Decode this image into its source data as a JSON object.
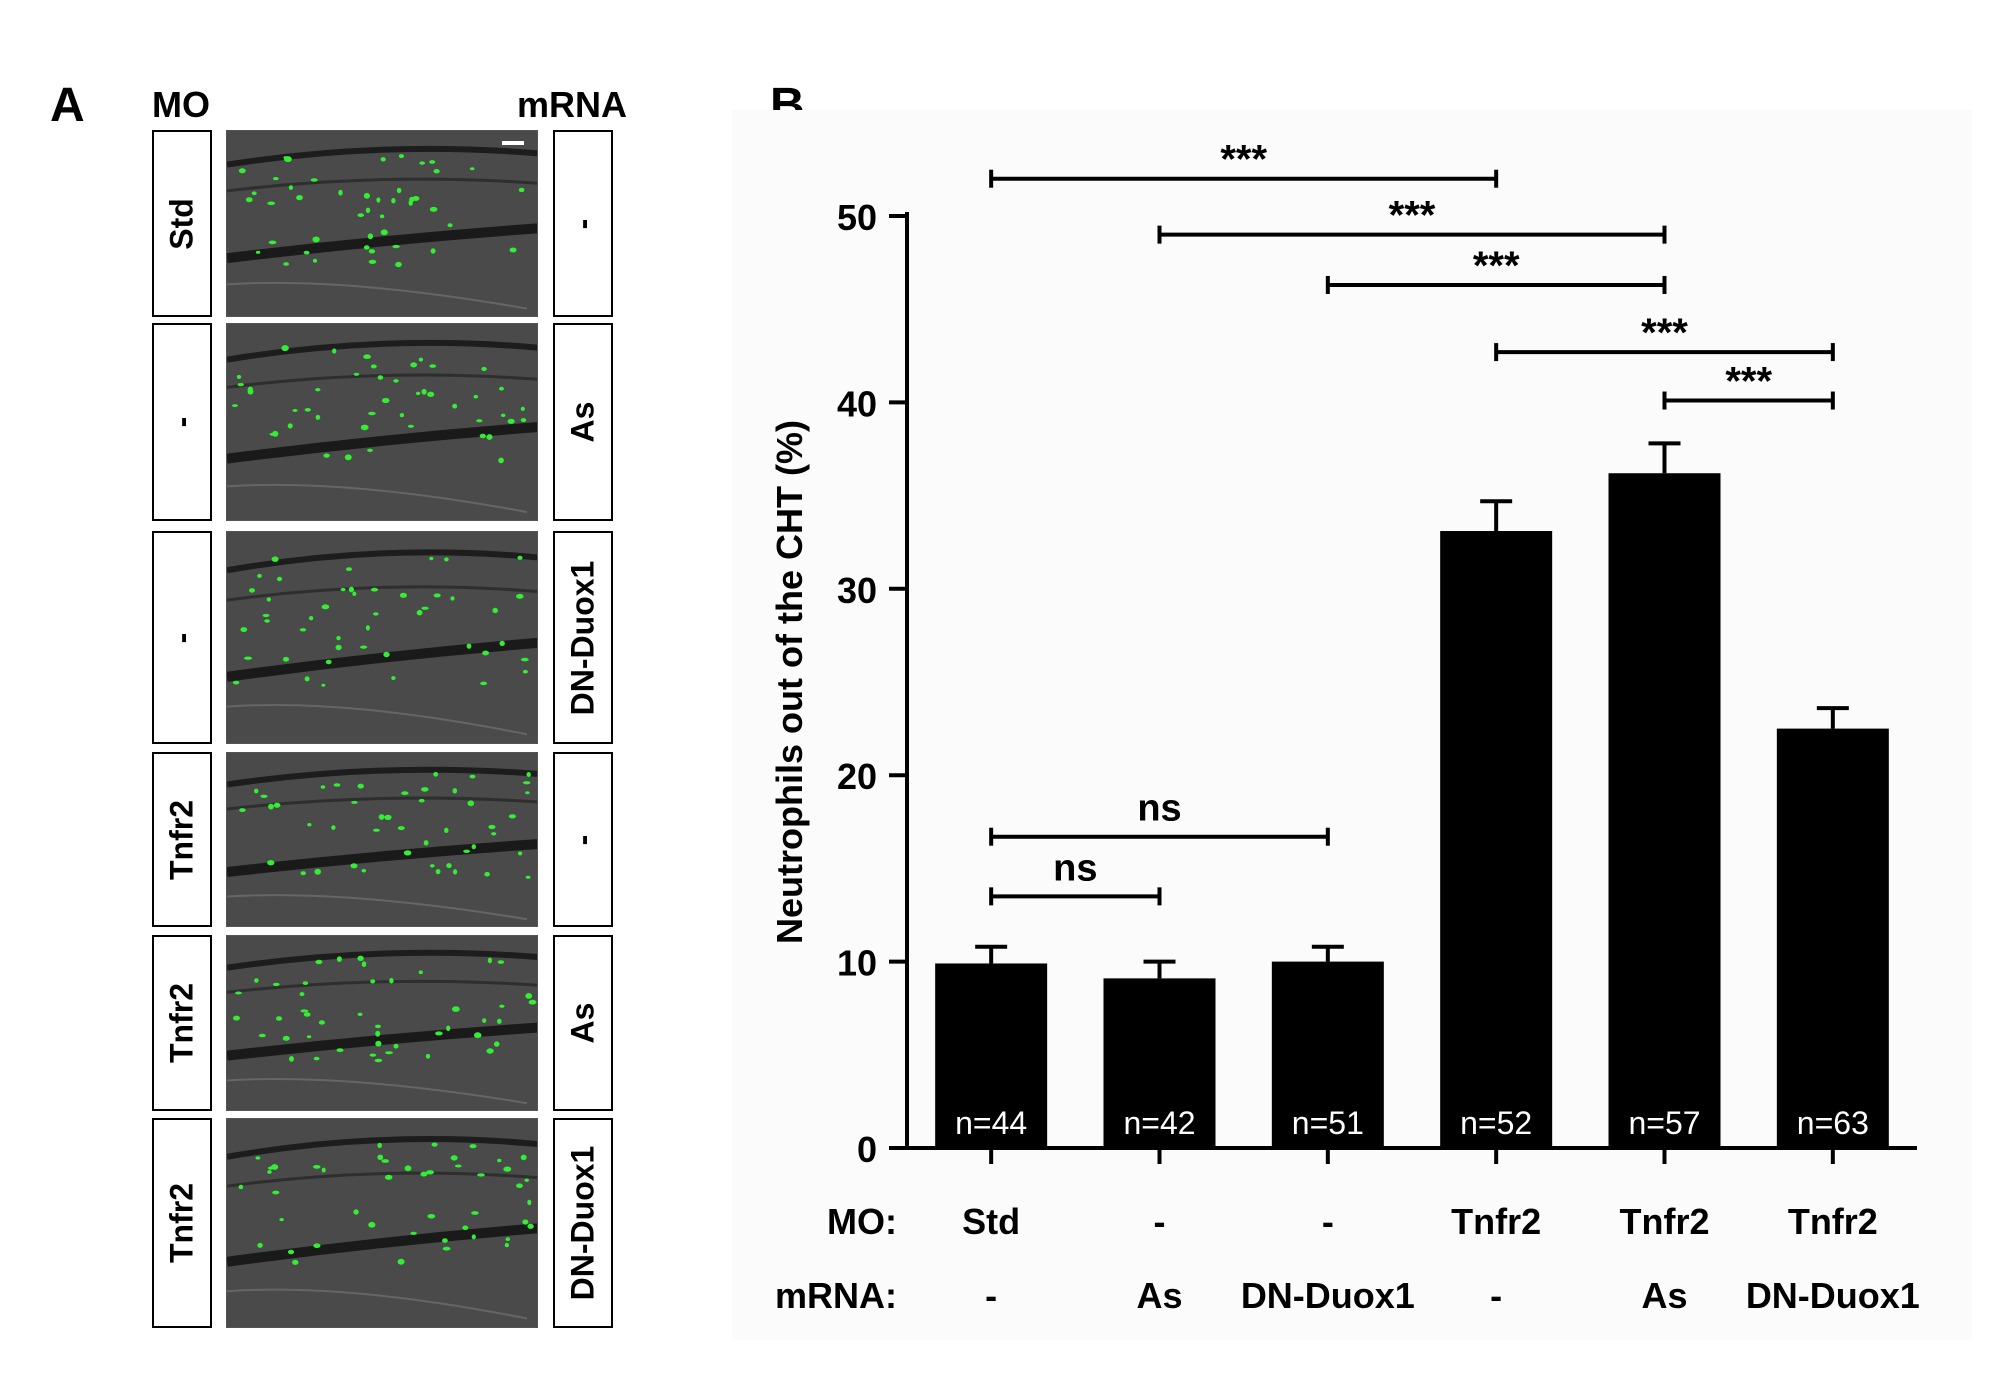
{
  "panel_a": {
    "letter": "A",
    "mo_header": "MO",
    "mrna_header": "mRNA",
    "rows": [
      {
        "mo": "Std",
        "mrna": "-"
      },
      {
        "mo": "-",
        "mrna": "As"
      },
      {
        "mo": "-",
        "mrna": "DN-Duox1"
      },
      {
        "mo": "Tnfr2",
        "mrna": "-"
      },
      {
        "mo": "Tnfr2",
        "mrna": "As"
      },
      {
        "mo": "Tnfr2",
        "mrna": "DN-Duox1"
      }
    ],
    "colors": {
      "neutrophil": "#33ee33",
      "tissue": "#4a4a4a"
    }
  },
  "panel_b": {
    "letter": "B"
  },
  "chart_data": {
    "type": "bar",
    "ylabel": "Neutrophils out of the CHT (%)",
    "ylim": [
      0,
      50
    ],
    "yticks": [
      0,
      10,
      20,
      30,
      40,
      50
    ],
    "row_labels": {
      "mo": "MO:",
      "mrna": "mRNA:"
    },
    "categories": [
      {
        "mo": "Std",
        "mrna": "-"
      },
      {
        "mo": "-",
        "mrna": "As"
      },
      {
        "mo": "-",
        "mrna": "DN-Duox1"
      },
      {
        "mo": "Tnfr2",
        "mrna": "-"
      },
      {
        "mo": "Tnfr2",
        "mrna": "As"
      },
      {
        "mo": "Tnfr2",
        "mrna": "DN-Duox1"
      }
    ],
    "values": [
      9.9,
      9.1,
      10.0,
      33.1,
      36.2,
      22.5
    ],
    "errors": [
      0.9,
      0.9,
      0.8,
      1.6,
      1.6,
      1.1
    ],
    "n_labels": [
      "n=44",
      "n=42",
      "n=51",
      "n=52",
      "n=57",
      "n=63"
    ],
    "bar_color": "#000000",
    "significance": [
      {
        "from": 0,
        "to": 3,
        "y": 52,
        "label": "***"
      },
      {
        "from": 1,
        "to": 4,
        "y": 49,
        "label": "***"
      },
      {
        "from": 2,
        "to": 4,
        "y": 46.3,
        "label": "***"
      },
      {
        "from": 3,
        "to": 5,
        "y": 42.7,
        "label": "***"
      },
      {
        "from": 4,
        "to": 5,
        "y": 40.1,
        "label": "***"
      },
      {
        "from": 0,
        "to": 2,
        "y": 16.7,
        "label": "ns"
      },
      {
        "from": 0,
        "to": 1,
        "y": 13.5,
        "label": "ns"
      }
    ]
  }
}
